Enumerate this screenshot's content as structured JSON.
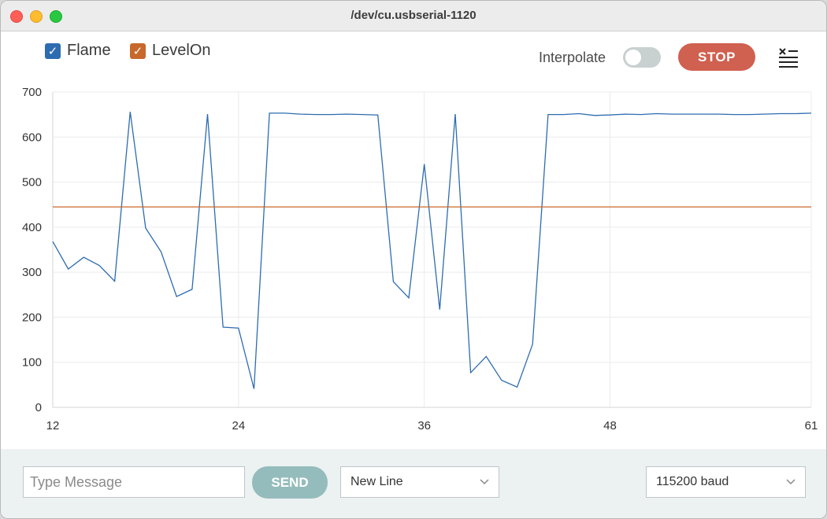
{
  "window": {
    "title": "/dev/cu.usbserial-1120"
  },
  "legend": [
    {
      "label": "Flame",
      "color": "#2e6cb0",
      "checked": true
    },
    {
      "label": "LevelOn",
      "color": "#c8682c",
      "checked": true
    }
  ],
  "toolbar": {
    "interpolate_label": "Interpolate",
    "interpolate_on": false,
    "stop_label": "STOP",
    "clear_icon": "clear-list-icon"
  },
  "chart_data": {
    "type": "line",
    "xlim": [
      12,
      61
    ],
    "ylim": [
      0,
      700
    ],
    "x_ticks": [
      12,
      24,
      36,
      48,
      61
    ],
    "y_ticks": [
      0,
      100,
      200,
      300,
      400,
      500,
      600,
      700
    ],
    "grid": true,
    "series": [
      {
        "name": "Flame",
        "color": "#2e6cb0",
        "x": [
          12,
          13,
          14,
          15,
          16,
          17,
          18,
          19,
          20,
          21,
          22,
          23,
          24,
          25,
          26,
          27,
          28,
          29,
          30,
          31,
          32,
          33,
          34,
          35,
          36,
          37,
          38,
          39,
          40,
          41,
          42,
          43,
          44,
          45,
          46,
          47,
          48,
          49,
          50,
          51,
          52,
          53,
          54,
          55,
          56,
          57,
          58,
          59,
          60,
          61
        ],
        "values": [
          368,
          307,
          333,
          315,
          280,
          656,
          398,
          345,
          246,
          262,
          651,
          178,
          176,
          41,
          653,
          653,
          651,
          650,
          650,
          651,
          650,
          649,
          279,
          243,
          540,
          217,
          651,
          77,
          113,
          60,
          45,
          140,
          650,
          650,
          652,
          648,
          649,
          651,
          650,
          652,
          651,
          651,
          651,
          651,
          650,
          650,
          651,
          652,
          652,
          653
        ]
      },
      {
        "name": "LevelOn",
        "color": "#c8682c",
        "x": [
          12,
          61
        ],
        "values": [
          445,
          445
        ]
      }
    ]
  },
  "footer": {
    "message_placeholder": "Type Message",
    "message_value": "",
    "send_label": "SEND",
    "line_ending": "New Line",
    "baud_rate": "115200 baud"
  }
}
